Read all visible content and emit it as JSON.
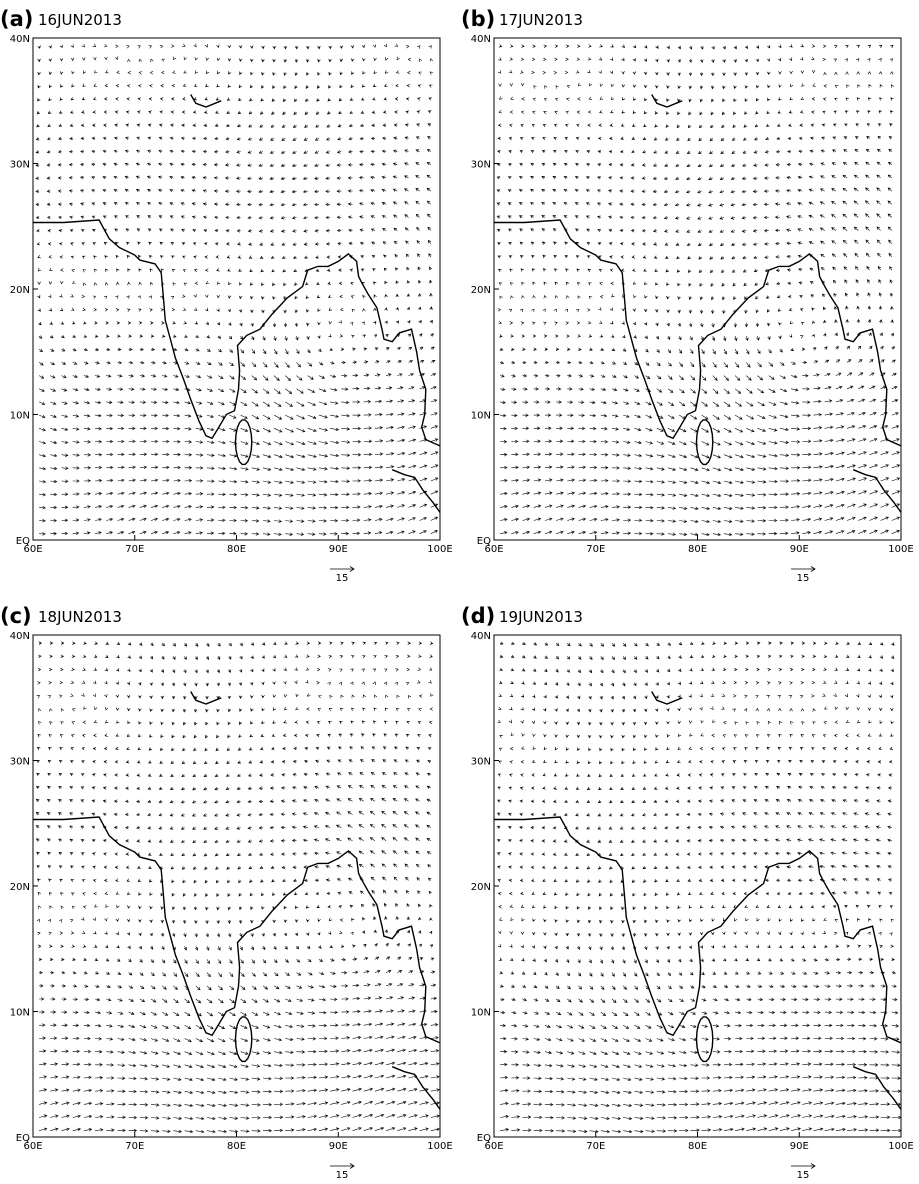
{
  "panels": [
    {
      "label": "(a)",
      "date": "16JUN2013",
      "xlim": [
        60,
        100
      ],
      "ylim": [
        0,
        40
      ],
      "xticks": [
        {
          "value": 60,
          "label": "60E"
        },
        {
          "value": 70,
          "label": "70E"
        },
        {
          "value": 80,
          "label": "80E"
        },
        {
          "value": 90,
          "label": "90E"
        },
        {
          "value": 100,
          "label": "100E"
        }
      ],
      "yticks": [
        {
          "value": 0,
          "label": "EQ"
        },
        {
          "value": 10,
          "label": "10N"
        },
        {
          "value": 20,
          "label": "20N"
        },
        {
          "value": 30,
          "label": "30N"
        },
        {
          "value": 40,
          "label": "40N"
        }
      ],
      "reference_vector": 15
    },
    {
      "label": "(b)",
      "date": "17JUN2013",
      "xlim": [
        60,
        100
      ],
      "ylim": [
        0,
        40
      ],
      "xticks": [
        {
          "value": 60,
          "label": "60E"
        },
        {
          "value": 70,
          "label": "70E"
        },
        {
          "value": 80,
          "label": "80E"
        },
        {
          "value": 90,
          "label": "90E"
        },
        {
          "value": 100,
          "label": "100E"
        }
      ],
      "yticks": [
        {
          "value": 0,
          "label": "EQ"
        },
        {
          "value": 10,
          "label": "10N"
        },
        {
          "value": 20,
          "label": "20N"
        },
        {
          "value": 30,
          "label": "30N"
        },
        {
          "value": 40,
          "label": "40N"
        }
      ],
      "reference_vector": 15
    },
    {
      "label": "(c)",
      "date": "18JUN2013",
      "xlim": [
        60,
        100
      ],
      "ylim": [
        0,
        40
      ],
      "xticks": [
        {
          "value": 60,
          "label": "60E"
        },
        {
          "value": 70,
          "label": "70E"
        },
        {
          "value": 80,
          "label": "80E"
        },
        {
          "value": 90,
          "label": "90E"
        },
        {
          "value": 100,
          "label": "100E"
        }
      ],
      "yticks": [
        {
          "value": 0,
          "label": "EQ"
        },
        {
          "value": 10,
          "label": "10N"
        },
        {
          "value": 20,
          "label": "20N"
        },
        {
          "value": 30,
          "label": "30N"
        },
        {
          "value": 40,
          "label": "40N"
        }
      ],
      "reference_vector": 15
    },
    {
      "label": "(d)",
      "date": "19JUN2013",
      "xlim": [
        60,
        100
      ],
      "ylim": [
        0,
        40
      ],
      "xticks": [
        {
          "value": 60,
          "label": "60E"
        },
        {
          "value": 70,
          "label": "70E"
        },
        {
          "value": 80,
          "label": "80E"
        },
        {
          "value": 90,
          "label": "90E"
        },
        {
          "value": 100,
          "label": "100E"
        }
      ],
      "yticks": [
        {
          "value": 0,
          "label": "EQ"
        },
        {
          "value": 10,
          "label": "10N"
        },
        {
          "value": 20,
          "label": "20N"
        },
        {
          "value": 30,
          "label": "30N"
        },
        {
          "value": 40,
          "label": "40N"
        }
      ],
      "reference_vector": 15
    }
  ]
}
